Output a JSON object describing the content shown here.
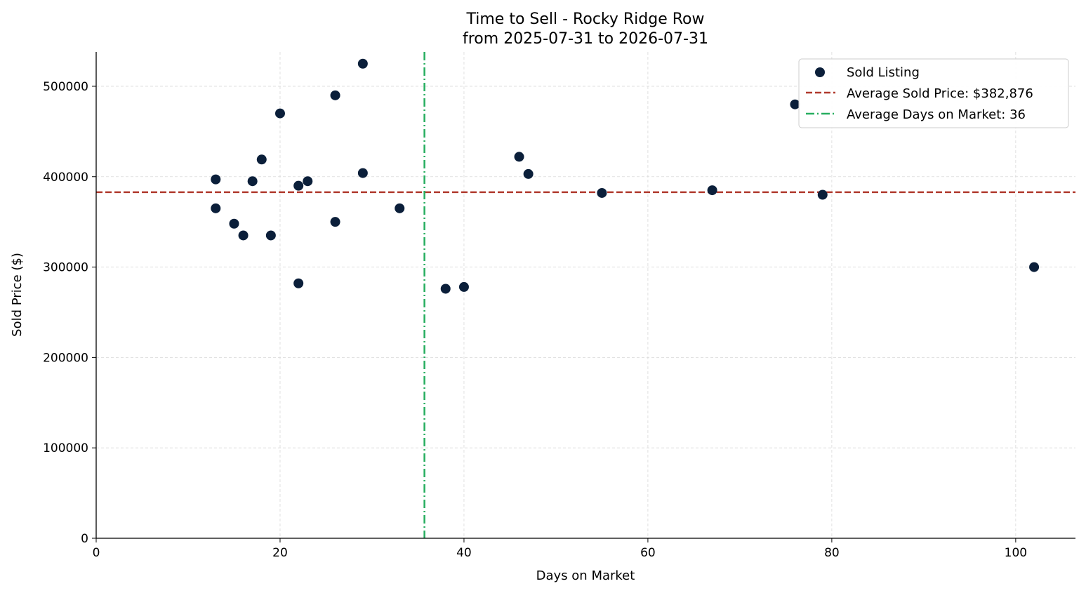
{
  "chart_data": {
    "type": "scatter",
    "title": "Time to Sell - Rocky Ridge Row",
    "subtitle": "from 2025-07-31 to 2026-07-31",
    "xlabel": "Days on Market",
    "ylabel": "Sold Price ($)",
    "xlim": [
      0,
      106.5
    ],
    "ylim": [
      0,
      538000
    ],
    "xticks": [
      0,
      20,
      40,
      60,
      80,
      100
    ],
    "yticks": [
      0,
      100000,
      200000,
      300000,
      400000,
      500000
    ],
    "grid": true,
    "legend_position": "top-right",
    "colors": {
      "points": "#0b1f3a",
      "avg_price_line": "#b03a2e",
      "avg_days_line": "#27ae60",
      "grid": "#d9d9d9"
    },
    "series": [
      {
        "name": "Sold Listing",
        "points": [
          {
            "x": 13,
            "y": 397000
          },
          {
            "x": 13,
            "y": 365000
          },
          {
            "x": 15,
            "y": 348000
          },
          {
            "x": 16,
            "y": 335000
          },
          {
            "x": 17,
            "y": 395000
          },
          {
            "x": 18,
            "y": 419000
          },
          {
            "x": 19,
            "y": 335000
          },
          {
            "x": 20,
            "y": 470000
          },
          {
            "x": 22,
            "y": 390000
          },
          {
            "x": 22,
            "y": 282000
          },
          {
            "x": 23,
            "y": 395000
          },
          {
            "x": 26,
            "y": 490000
          },
          {
            "x": 26,
            "y": 350000
          },
          {
            "x": 29,
            "y": 525000
          },
          {
            "x": 29,
            "y": 404000
          },
          {
            "x": 33,
            "y": 365000
          },
          {
            "x": 38,
            "y": 276000
          },
          {
            "x": 40,
            "y": 278000
          },
          {
            "x": 46,
            "y": 422000
          },
          {
            "x": 47,
            "y": 403000
          },
          {
            "x": 55,
            "y": 382000
          },
          {
            "x": 67,
            "y": 385000
          },
          {
            "x": 76,
            "y": 480000
          },
          {
            "x": 79,
            "y": 380000
          },
          {
            "x": 102,
            "y": 300000
          }
        ]
      }
    ],
    "reference_lines": {
      "avg_price": {
        "label": "Average Sold Price: $382,876",
        "value": 382876
      },
      "avg_days": {
        "label": "Average Days on Market: 36",
        "value": 35.7
      }
    }
  }
}
